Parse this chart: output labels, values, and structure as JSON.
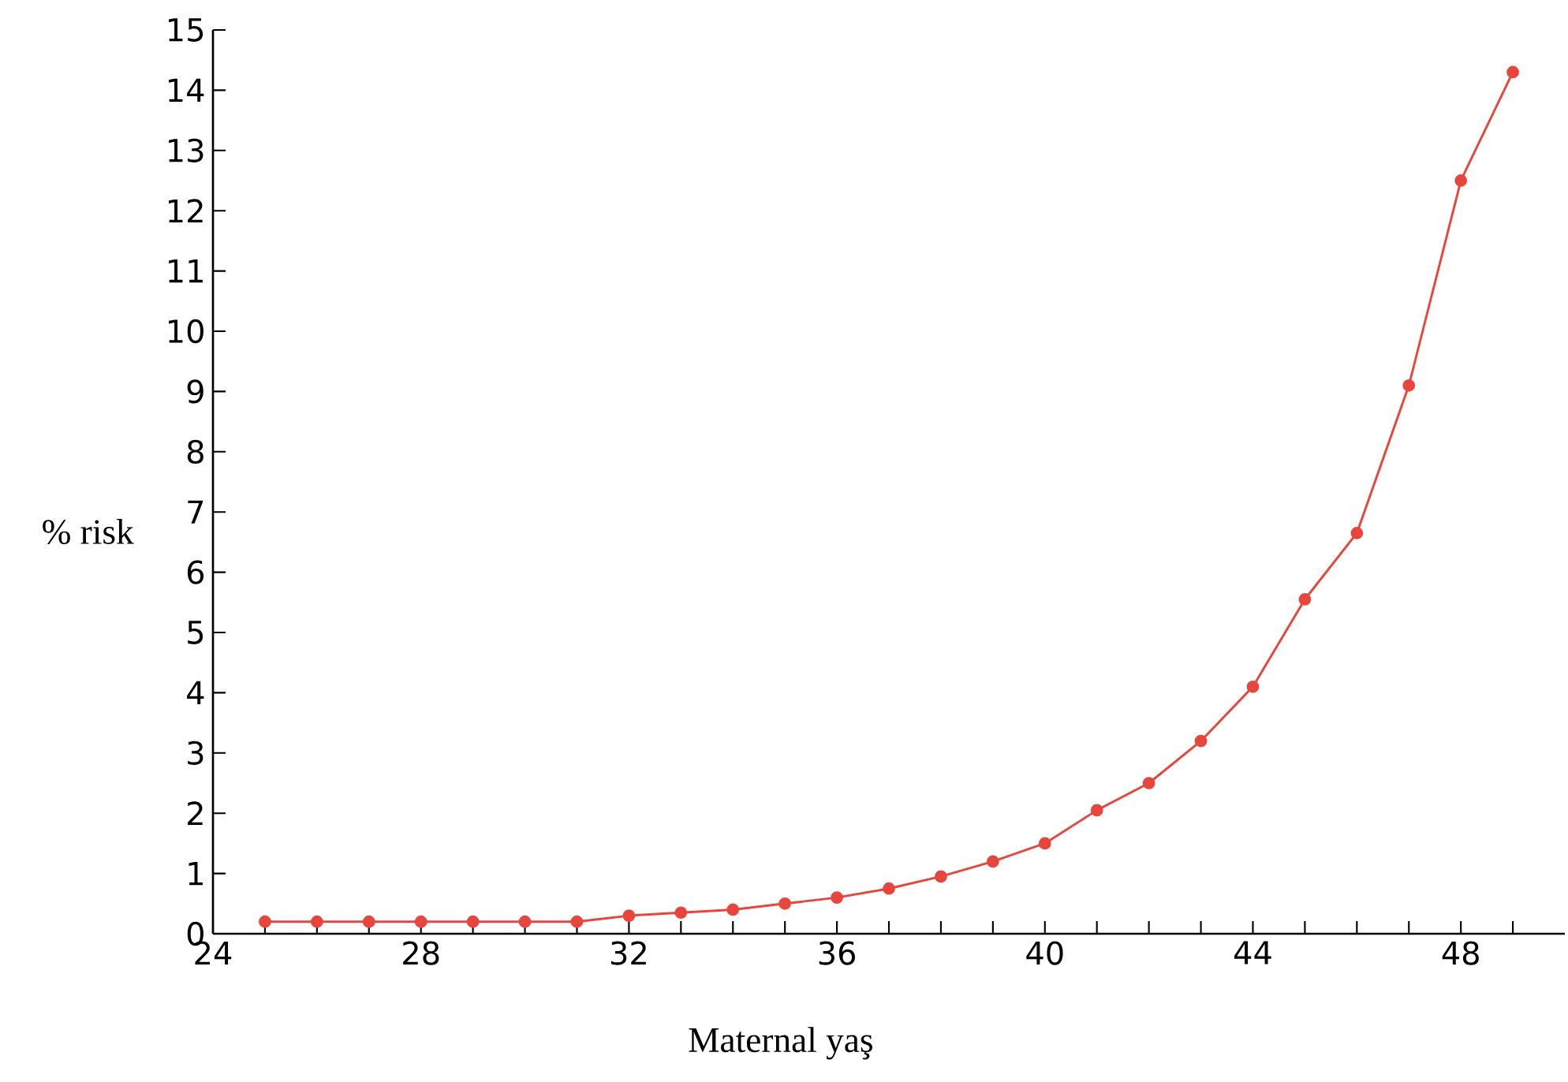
{
  "chart_data": {
    "type": "line",
    "xlabel": "Maternal yaş",
    "ylabel": "% risk",
    "x": [
      25,
      26,
      27,
      28,
      29,
      30,
      31,
      32,
      33,
      34,
      35,
      36,
      37,
      38,
      39,
      40,
      41,
      42,
      43,
      44,
      45,
      46,
      47,
      48,
      49
    ],
    "series": [
      {
        "color": "#e8453c",
        "values": [
          0.2,
          0.2,
          0.2,
          0.2,
          0.2,
          0.2,
          0.2,
          0.3,
          0.35,
          0.4,
          0.5,
          0.6,
          0.75,
          0.95,
          1.2,
          1.5,
          2.05,
          2.5,
          3.2,
          4.1,
          5.55,
          6.65,
          9.1,
          12.5,
          14.3
        ]
      }
    ],
    "xlim": [
      24,
      50
    ],
    "ylim": [
      0,
      15
    ],
    "xticks": [
      24,
      {
        "value": 25,
        "label": null
      },
      {
        "value": 26,
        "label": null
      },
      {
        "value": 27,
        "label": null
      },
      28,
      {
        "value": 29,
        "label": null
      },
      {
        "value": 30,
        "label": null
      },
      {
        "value": 31,
        "label": null
      },
      32,
      {
        "value": 33,
        "label": null
      },
      {
        "value": 34,
        "label": null
      },
      {
        "value": 35,
        "label": null
      },
      36,
      {
        "value": 37,
        "label": null
      },
      {
        "value": 38,
        "label": null
      },
      {
        "value": 39,
        "label": null
      },
      40,
      {
        "value": 41,
        "label": null
      },
      {
        "value": 42,
        "label": null
      },
      {
        "value": 43,
        "label": null
      },
      44,
      {
        "value": 45,
        "label": null
      },
      {
        "value": 46,
        "label": null
      },
      {
        "value": 47,
        "label": null
      },
      48,
      {
        "value": 49,
        "label": null
      }
    ],
    "yticks": [
      0,
      1,
      2,
      3,
      4,
      5,
      6,
      7,
      8,
      9,
      10,
      11,
      12,
      13,
      14,
      15
    ],
    "marker": "circle",
    "line_style": "solid"
  }
}
